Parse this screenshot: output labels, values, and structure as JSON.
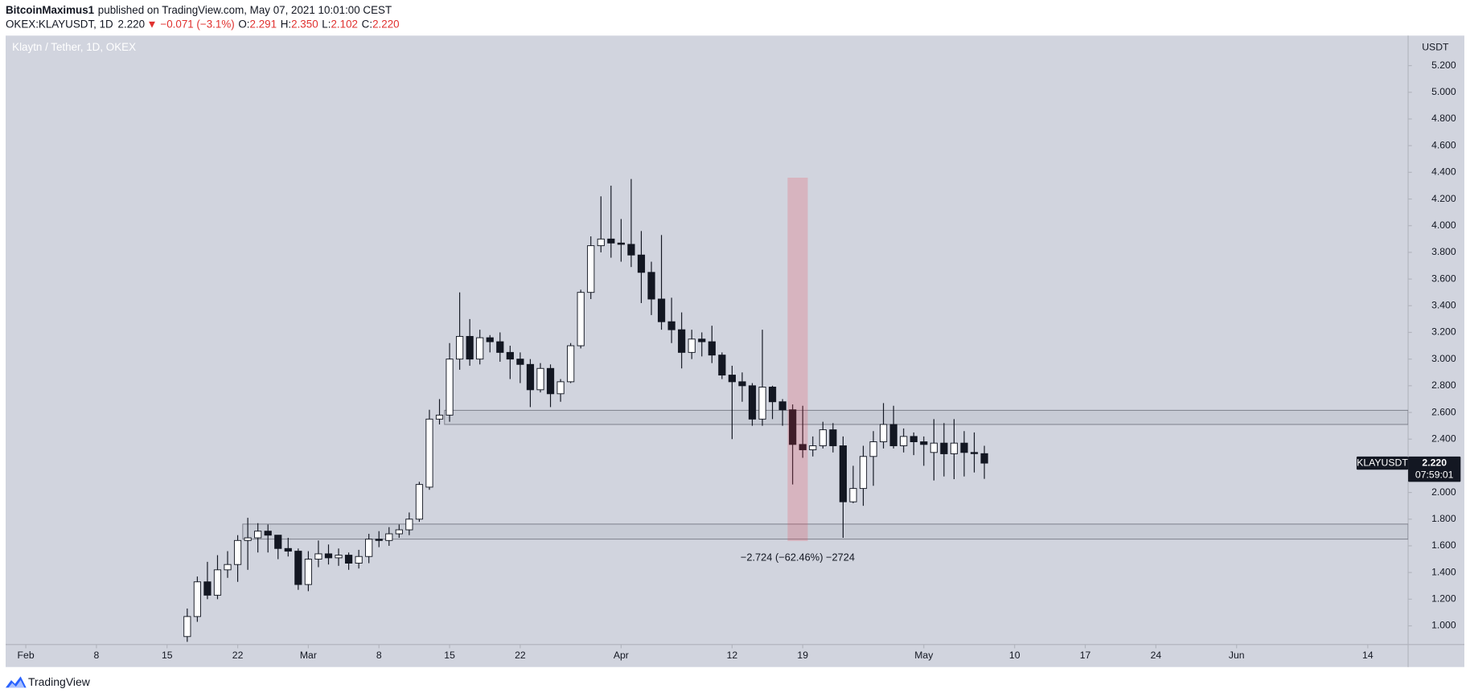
{
  "header": {
    "author": "BitcoinMaximus1",
    "published": "published on TradingView.com, May 07, 2021 10:01:00 CEST",
    "symbol": "OKEX:KLAYUSDT, 1D",
    "last": "2.220",
    "change": "▼ −0.071 (−3.1%)",
    "ohlc": [
      {
        "label": "O:",
        "value": "2.291"
      },
      {
        "label": "H:",
        "value": "2.350"
      },
      {
        "label": "L:",
        "value": "2.102"
      },
      {
        "label": "C:",
        "value": "2.220"
      }
    ]
  },
  "footer": {
    "brand": "TradingView"
  },
  "chart_data": {
    "type": "candlestick",
    "title": "Klaytn / Tether, 1D, OKEX",
    "y_unit": "USDT",
    "up_color": "#ffffff",
    "down_color": "#131722",
    "wick_color": "#131722",
    "x": [
      "02-17",
      "02-18",
      "02-19",
      "02-20",
      "02-21",
      "02-22",
      "02-23",
      "02-24",
      "02-25",
      "02-26",
      "02-27",
      "02-28",
      "03-01",
      "03-02",
      "03-03",
      "03-04",
      "03-05",
      "03-06",
      "03-07",
      "03-08",
      "03-09",
      "03-10",
      "03-11",
      "03-12",
      "03-13",
      "03-14",
      "03-15",
      "03-16",
      "03-17",
      "03-18",
      "03-19",
      "03-20",
      "03-21",
      "03-22",
      "03-23",
      "03-24",
      "03-25",
      "03-26",
      "03-27",
      "03-28",
      "03-29",
      "03-30",
      "03-31",
      "04-01",
      "04-02",
      "04-03",
      "04-04",
      "04-05",
      "04-06",
      "04-07",
      "04-08",
      "04-09",
      "04-10",
      "04-11",
      "04-12",
      "04-13",
      "04-14",
      "04-15",
      "04-16",
      "04-17",
      "04-18",
      "04-19",
      "04-20",
      "04-21",
      "04-22",
      "04-23",
      "04-24",
      "04-25",
      "04-26",
      "04-27",
      "04-28",
      "04-29",
      "04-30",
      "05-01",
      "05-02",
      "05-03",
      "05-04",
      "05-05",
      "05-06",
      "05-07"
    ],
    "open": [
      0.92,
      1.07,
      1.33,
      1.23,
      1.42,
      1.46,
      1.64,
      1.66,
      1.71,
      1.68,
      1.58,
      1.56,
      1.31,
      1.5,
      1.54,
      1.51,
      1.53,
      1.47,
      1.52,
      1.65,
      1.64,
      1.69,
      1.72,
      1.8,
      2.04,
      2.55,
      2.58,
      3.0,
      3.17,
      3.0,
      3.16,
      3.13,
      3.05,
      3.0,
      2.96,
      2.77,
      2.93,
      2.74,
      2.83,
      3.1,
      3.5,
      3.85,
      3.9,
      3.87,
      3.86,
      3.78,
      3.65,
      3.45,
      3.28,
      3.22,
      3.05,
      3.15,
      3.13,
      3.03,
      2.88,
      2.83,
      2.8,
      2.55,
      2.79,
      2.68,
      2.62,
      2.36,
      2.32,
      2.35,
      2.47,
      2.35,
      1.93,
      2.03,
      2.27,
      2.38,
      2.51,
      2.35,
      2.42,
      2.38,
      2.3,
      2.37,
      2.29,
      2.37,
      2.3,
      2.291
    ],
    "high": [
      1.13,
      1.37,
      1.48,
      1.53,
      1.56,
      1.68,
      1.81,
      1.77,
      1.76,
      1.68,
      1.66,
      1.58,
      1.56,
      1.64,
      1.61,
      1.58,
      1.55,
      1.57,
      1.69,
      1.71,
      1.74,
      1.76,
      1.85,
      2.08,
      2.62,
      2.7,
      3.12,
      3.5,
      3.3,
      3.22,
      3.18,
      3.2,
      3.1,
      3.05,
      3.0,
      2.97,
      2.96,
      2.85,
      3.12,
      3.52,
      3.92,
      4.22,
      4.3,
      4.05,
      4.35,
      3.96,
      3.73,
      3.93,
      3.46,
      3.35,
      3.22,
      3.2,
      3.25,
      3.05,
      2.95,
      2.9,
      2.82,
      3.22,
      2.8,
      2.7,
      2.66,
      2.65,
      2.42,
      2.53,
      2.52,
      2.42,
      2.2,
      2.35,
      2.46,
      2.67,
      2.65,
      2.48,
      2.45,
      2.42,
      2.55,
      2.52,
      2.55,
      2.46,
      2.45,
      2.35
    ],
    "low": [
      0.88,
      1.03,
      1.2,
      1.2,
      1.36,
      1.33,
      1.42,
      1.55,
      1.55,
      1.5,
      1.52,
      1.27,
      1.26,
      1.44,
      1.46,
      1.45,
      1.42,
      1.43,
      1.47,
      1.59,
      1.6,
      1.66,
      1.68,
      1.78,
      2.02,
      2.51,
      2.53,
      2.92,
      2.95,
      2.96,
      3.05,
      2.98,
      2.85,
      2.82,
      2.64,
      2.75,
      2.64,
      2.68,
      2.82,
      3.08,
      3.45,
      3.8,
      3.76,
      3.73,
      3.69,
      3.42,
      3.33,
      3.22,
      3.12,
      2.93,
      3.0,
      3.02,
      2.97,
      2.85,
      2.4,
      2.68,
      2.5,
      2.5,
      2.55,
      2.5,
      2.06,
      2.26,
      2.27,
      2.33,
      2.3,
      1.66,
      1.92,
      1.9,
      2.05,
      2.33,
      2.33,
      2.3,
      2.28,
      2.2,
      2.09,
      2.12,
      2.1,
      2.12,
      2.15,
      2.102
    ],
    "close": [
      1.07,
      1.33,
      1.23,
      1.42,
      1.46,
      1.64,
      1.66,
      1.71,
      1.68,
      1.58,
      1.56,
      1.31,
      1.5,
      1.54,
      1.51,
      1.53,
      1.47,
      1.52,
      1.65,
      1.64,
      1.69,
      1.72,
      1.8,
      2.06,
      2.55,
      2.58,
      3.0,
      3.17,
      3.0,
      3.16,
      3.13,
      3.05,
      3.0,
      2.96,
      2.77,
      2.93,
      2.74,
      2.83,
      3.1,
      3.5,
      3.85,
      3.9,
      3.87,
      3.86,
      3.78,
      3.65,
      3.45,
      3.28,
      3.22,
      3.05,
      3.15,
      3.13,
      3.03,
      2.88,
      2.83,
      2.8,
      2.55,
      2.79,
      2.68,
      2.62,
      2.36,
      2.32,
      2.35,
      2.47,
      2.35,
      1.93,
      2.03,
      2.27,
      2.38,
      2.51,
      2.35,
      2.42,
      2.38,
      2.36,
      2.37,
      2.29,
      2.37,
      2.3,
      2.291,
      2.22
    ],
    "xlim": [
      "01-30",
      "06-18"
    ],
    "xticks": [
      {
        "value": "02-01",
        "label": "Feb"
      },
      {
        "value": "02-08",
        "label": "8"
      },
      {
        "value": "02-15",
        "label": "15"
      },
      {
        "value": "02-22",
        "label": "22"
      },
      {
        "value": "03-01",
        "label": "Mar"
      },
      {
        "value": "03-08",
        "label": "8"
      },
      {
        "value": "03-15",
        "label": "15"
      },
      {
        "value": "03-22",
        "label": "22"
      },
      {
        "value": "04-01",
        "label": "Apr"
      },
      {
        "value": "04-12",
        "label": "12"
      },
      {
        "value": "04-19",
        "label": "19"
      },
      {
        "value": "05-01",
        "label": "May"
      },
      {
        "value": "05-10",
        "label": "10"
      },
      {
        "value": "05-17",
        "label": "17"
      },
      {
        "value": "05-24",
        "label": "24"
      },
      {
        "value": "06-01",
        "label": "Jun"
      },
      {
        "value": "06-14",
        "label": "14"
      }
    ],
    "ylim": [
      0.86,
      5.425
    ],
    "yticks": [
      {
        "value": 1.0,
        "label": "1.000"
      },
      {
        "value": 1.2,
        "label": "1.200"
      },
      {
        "value": 1.4,
        "label": "1.400"
      },
      {
        "value": 1.6,
        "label": "1.600"
      },
      {
        "value": 1.8,
        "label": "1.800"
      },
      {
        "value": 2.0,
        "label": "2.000"
      },
      {
        "value": 2.2,
        "label": "2.200"
      },
      {
        "value": 2.4,
        "label": "2.400"
      },
      {
        "value": 2.6,
        "label": "2.600"
      },
      {
        "value": 2.8,
        "label": "2.800"
      },
      {
        "value": 3.0,
        "label": "3.000"
      },
      {
        "value": 3.2,
        "label": "3.200"
      },
      {
        "value": 3.4,
        "label": "3.400"
      },
      {
        "value": 3.6,
        "label": "3.600"
      },
      {
        "value": 3.8,
        "label": "3.800"
      },
      {
        "value": 4.0,
        "label": "4.000"
      },
      {
        "value": 4.2,
        "label": "4.200"
      },
      {
        "value": 4.4,
        "label": "4.400"
      },
      {
        "value": 4.6,
        "label": "4.600"
      },
      {
        "value": 4.8,
        "label": "4.800"
      },
      {
        "value": 5.0,
        "label": "5.000"
      },
      {
        "value": 5.2,
        "label": "5.200"
      }
    ],
    "zones": [
      {
        "from": "02-23",
        "low": 1.65,
        "high": 1.763
      },
      {
        "from": "03-15",
        "low": 2.51,
        "high": 2.616
      }
    ],
    "measure": {
      "from": "04-18",
      "to": "04-19",
      "high": 4.36,
      "low": 1.636,
      "label": "−2.724 (−62.46%) −2724"
    },
    "last_price": {
      "name": "KLAYUSDT",
      "value": 2.22,
      "label": "2.220",
      "countdown": "07:59:01"
    }
  }
}
